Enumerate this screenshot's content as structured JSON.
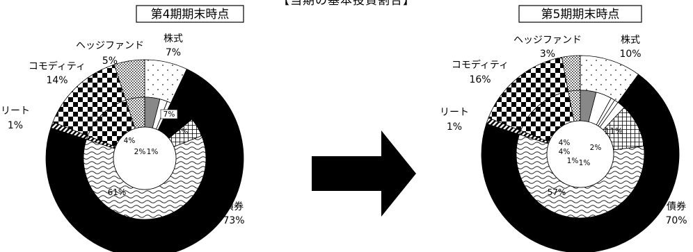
{
  "title": "【当期の基本投資割合】",
  "chart_data": [
    {
      "type": "pie",
      "title": "第4期期末時点",
      "outer_ring": [
        {
          "label": "株式",
          "value": 7
        },
        {
          "label": "債券",
          "value": 73
        },
        {
          "label": "リート",
          "value": 1
        },
        {
          "label": "コモディティ",
          "value": 14
        },
        {
          "label": "ヘッジファンド",
          "value": 5
        }
      ],
      "inner_ring": [
        {
          "value": 4
        },
        {
          "value": 2
        },
        {
          "value": 1
        },
        {
          "value": 7
        },
        {
          "value": 5
        },
        {
          "value": 61
        },
        {
          "value": 1
        },
        {
          "value": 14
        },
        {
          "value": 5
        }
      ]
    },
    {
      "type": "pie",
      "title": "第5期期末時点",
      "outer_ring": [
        {
          "label": "株式",
          "value": 10
        },
        {
          "label": "債券",
          "value": 70
        },
        {
          "label": "リート",
          "value": 1
        },
        {
          "label": "コモディティ",
          "value": 16
        },
        {
          "label": "ヘッジファンド",
          "value": 3
        }
      ],
      "inner_ring": [
        {
          "value": 4
        },
        {
          "value": 4
        },
        {
          "value": 1
        },
        {
          "value": 1
        },
        {
          "value": 2
        },
        {
          "value": 11
        },
        {
          "value": 57
        },
        {
          "value": 1
        },
        {
          "value": 16
        },
        {
          "value": 3
        }
      ]
    }
  ]
}
